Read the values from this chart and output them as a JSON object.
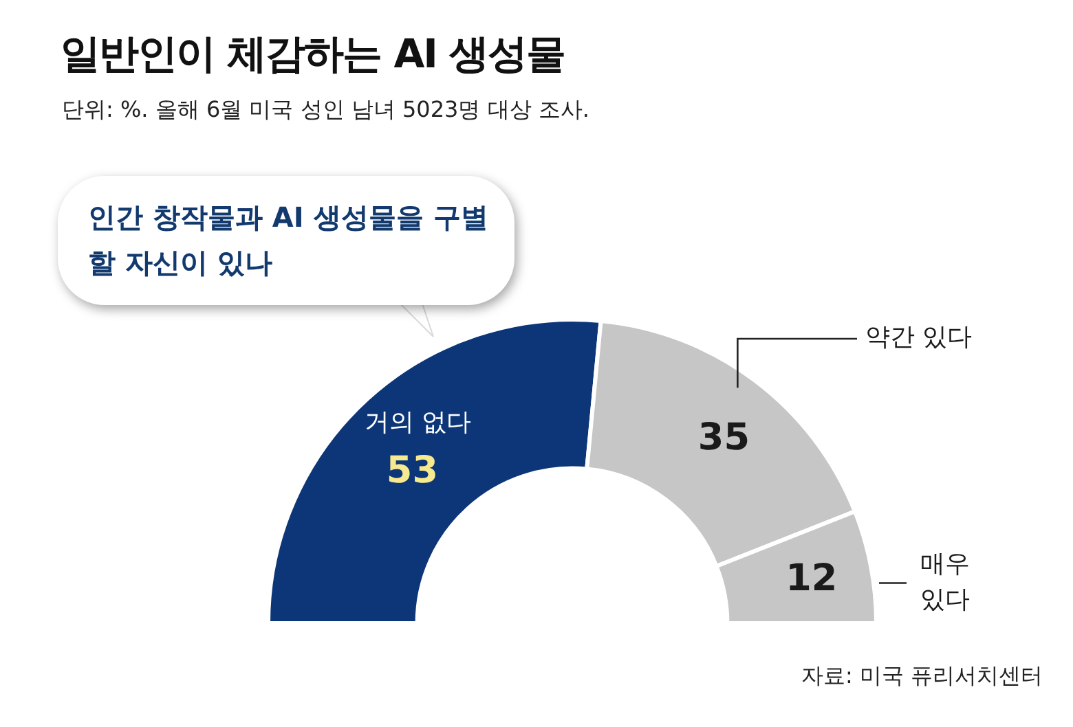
{
  "chart_data": {
    "type": "donut",
    "title": "일반인이 체감하는 AI 생성물",
    "subtitle": "단위: %. 올해 6월 미국 성인 남녀 5023명 대상 조사.",
    "categories": [
      "거의 없다",
      "약간 있다",
      "매우\n있다"
    ],
    "values": [
      53,
      35,
      12
    ],
    "colors": [
      "#0c3677",
      "#c6c6c6",
      "#c6c6c6"
    ],
    "data_labels": true,
    "legend": false,
    "annotations": [
      "인간 창작물과 AI 생성물을 구별할 자신이 있나",
      "자료: 미국 퓨리서치센터"
    ]
  }
}
